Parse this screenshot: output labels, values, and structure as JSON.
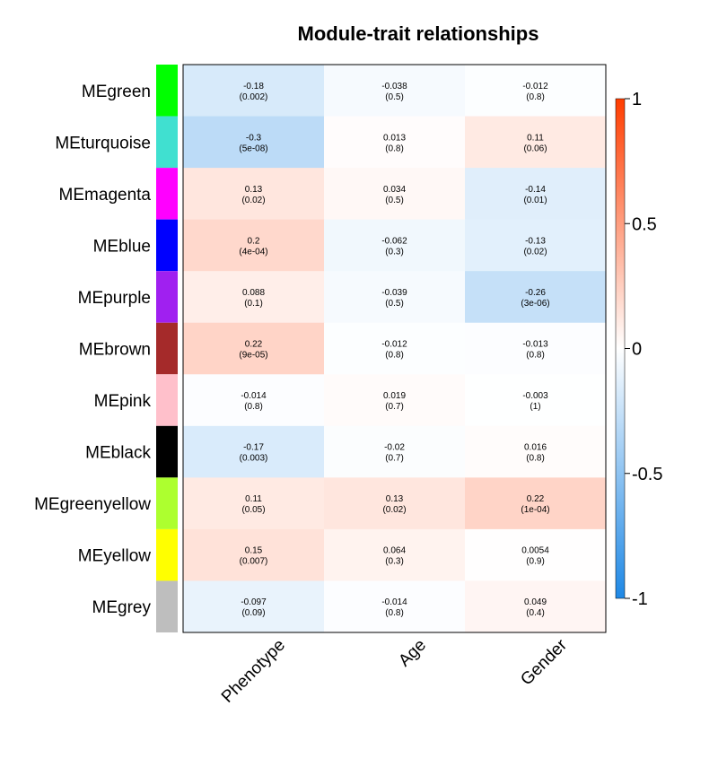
{
  "chart_data": {
    "type": "heatmap",
    "title": "Module-trait relationships",
    "columns": [
      "Phenotype",
      "Age",
      "Gender"
    ],
    "rows": [
      {
        "name": "MEgreen",
        "color": "#00ff00",
        "cells": [
          {
            "r": -0.18,
            "label": "-0.18",
            "p": "(0.002)"
          },
          {
            "r": -0.038,
            "label": "-0.038",
            "p": "(0.5)"
          },
          {
            "r": -0.012,
            "label": "-0.012",
            "p": "(0.8)"
          }
        ]
      },
      {
        "name": "MEturquoise",
        "color": "#40e0d0",
        "cells": [
          {
            "r": -0.3,
            "label": "-0.3",
            "p": "(5e-08)"
          },
          {
            "r": 0.013,
            "label": "0.013",
            "p": "(0.8)"
          },
          {
            "r": 0.11,
            "label": "0.11",
            "p": "(0.06)"
          }
        ]
      },
      {
        "name": "MEmagenta",
        "color": "#ff00ff",
        "cells": [
          {
            "r": 0.13,
            "label": "0.13",
            "p": "(0.02)"
          },
          {
            "r": 0.034,
            "label": "0.034",
            "p": "(0.5)"
          },
          {
            "r": -0.14,
            "label": "-0.14",
            "p": "(0.01)"
          }
        ]
      },
      {
        "name": "MEblue",
        "color": "#0000ff",
        "cells": [
          {
            "r": 0.2,
            "label": "0.2",
            "p": "(4e-04)"
          },
          {
            "r": -0.062,
            "label": "-0.062",
            "p": "(0.3)"
          },
          {
            "r": -0.13,
            "label": "-0.13",
            "p": "(0.02)"
          }
        ]
      },
      {
        "name": "MEpurple",
        "color": "#a020f0",
        "cells": [
          {
            "r": 0.088,
            "label": "0.088",
            "p": "(0.1)"
          },
          {
            "r": -0.039,
            "label": "-0.039",
            "p": "(0.5)"
          },
          {
            "r": -0.26,
            "label": "-0.26",
            "p": "(3e-06)"
          }
        ]
      },
      {
        "name": "MEbrown",
        "color": "#a52a2a",
        "cells": [
          {
            "r": 0.22,
            "label": "0.22",
            "p": "(9e-05)"
          },
          {
            "r": -0.012,
            "label": "-0.012",
            "p": "(0.8)"
          },
          {
            "r": -0.013,
            "label": "-0.013",
            "p": "(0.8)"
          }
        ]
      },
      {
        "name": "MEpink",
        "color": "#ffc0cb",
        "cells": [
          {
            "r": -0.014,
            "label": "-0.014",
            "p": "(0.8)"
          },
          {
            "r": 0.019,
            "label": "0.019",
            "p": "(0.7)"
          },
          {
            "r": -0.003,
            "label": "-0.003",
            "p": "(1)"
          }
        ]
      },
      {
        "name": "MEblack",
        "color": "#000000",
        "cells": [
          {
            "r": -0.17,
            "label": "-0.17",
            "p": "(0.003)"
          },
          {
            "r": -0.02,
            "label": "-0.02",
            "p": "(0.7)"
          },
          {
            "r": 0.016,
            "label": "0.016",
            "p": "(0.8)"
          }
        ]
      },
      {
        "name": "MEgreenyellow",
        "color": "#adff2f",
        "cells": [
          {
            "r": 0.11,
            "label": "0.11",
            "p": "(0.05)"
          },
          {
            "r": 0.13,
            "label": "0.13",
            "p": "(0.02)"
          },
          {
            "r": 0.22,
            "label": "0.22",
            "p": "(1e-04)"
          }
        ]
      },
      {
        "name": "MEyellow",
        "color": "#ffff00",
        "cells": [
          {
            "r": 0.15,
            "label": "0.15",
            "p": "(0.007)"
          },
          {
            "r": 0.064,
            "label": "0.064",
            "p": "(0.3)"
          },
          {
            "r": 0.0054,
            "label": "0.0054",
            "p": "(0.9)"
          }
        ]
      },
      {
        "name": "MEgrey",
        "color": "#bebebe",
        "cells": [
          {
            "r": -0.097,
            "label": "-0.097",
            "p": "(0.09)"
          },
          {
            "r": -0.014,
            "label": "-0.014",
            "p": "(0.8)"
          },
          {
            "r": 0.049,
            "label": "0.049",
            "p": "(0.4)"
          }
        ]
      }
    ],
    "colorbar": {
      "range": [
        -1,
        1
      ],
      "ticks": [
        {
          "value": 1,
          "label": "1"
        },
        {
          "value": 0.5,
          "label": "0.5"
        },
        {
          "value": 0,
          "label": "0"
        },
        {
          "value": -0.5,
          "label": "-0.5"
        },
        {
          "value": -1,
          "label": "-1"
        }
      ],
      "negative_color": "#1e88e5",
      "zero_color": "#ffffff",
      "positive_color": "#ff3d00"
    },
    "grid": false,
    "legend_position": "right"
  }
}
